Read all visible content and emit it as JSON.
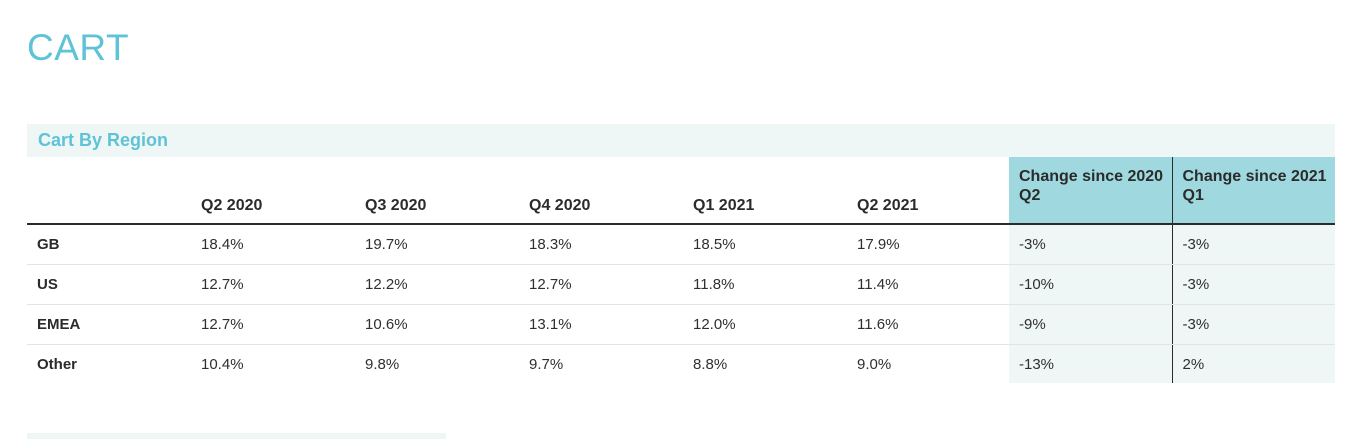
{
  "page": {
    "title": "CART"
  },
  "section": {
    "title": "Cart By Region"
  },
  "table": {
    "corner": "",
    "headers": [
      "Q2 2020",
      "Q3 2020",
      "Q4 2020",
      "Q1 2021",
      "Q2 2021"
    ],
    "change_headers": [
      "Change since 2020 Q2",
      "Change since 2021 Q1"
    ],
    "rows": [
      {
        "region": "GB",
        "values": [
          "18.4%",
          "19.7%",
          "18.3%",
          "18.5%",
          "17.9%"
        ],
        "changes": [
          "-3%",
          "-3%"
        ]
      },
      {
        "region": "US",
        "values": [
          "12.7%",
          "12.2%",
          "12.7%",
          "11.8%",
          "11.4%"
        ],
        "changes": [
          "-10%",
          "-3%"
        ]
      },
      {
        "region": "EMEA",
        "values": [
          "12.7%",
          "10.6%",
          "13.1%",
          "12.0%",
          "11.6%"
        ],
        "changes": [
          "-9%",
          "-3%"
        ]
      },
      {
        "region": "Other",
        "values": [
          "10.4%",
          "9.8%",
          "9.7%",
          "8.8%",
          "9.0%"
        ],
        "changes": [
          "-13%",
          "2%"
        ]
      }
    ]
  },
  "colors": {
    "accent": "#5ec3d6",
    "change_header_bg": "#9fd9df",
    "change_cell_bg": "#eef7f5",
    "section_bg": "#eef7f5"
  }
}
